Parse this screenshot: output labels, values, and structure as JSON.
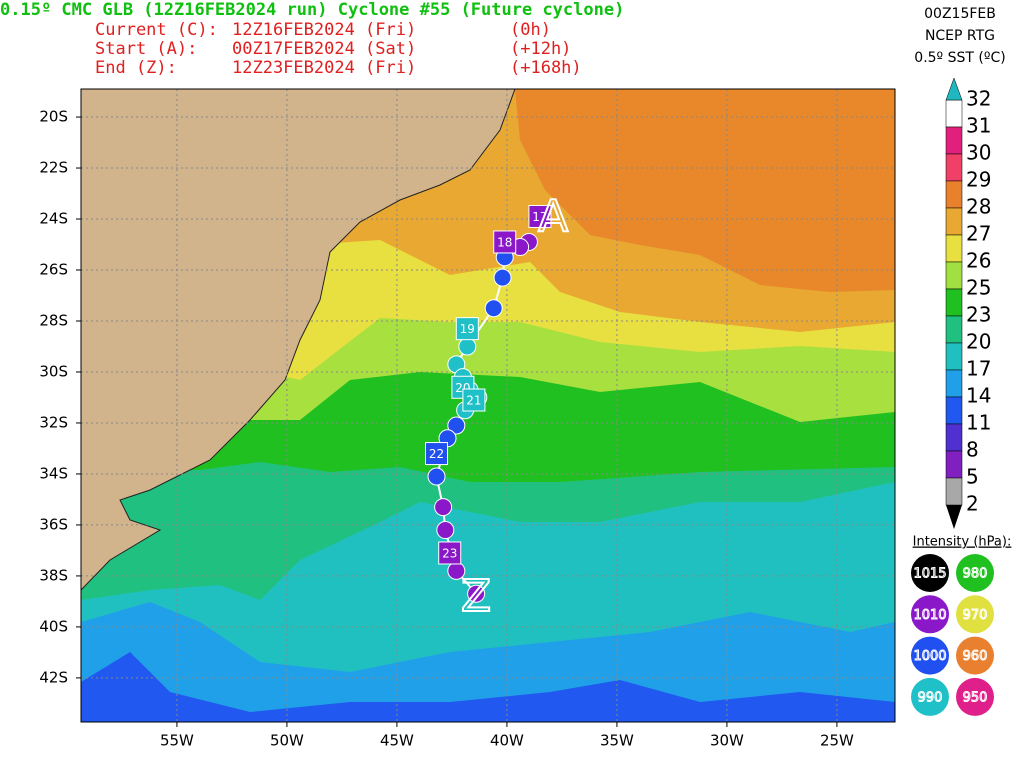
{
  "header": {
    "title": "0.15º CMC GLB (12Z16FEB2024 run) Cyclone #55 (Future cyclone)",
    "lines": [
      {
        "label": "Current (C):",
        "date": "12Z16FEB2024 (Fri)",
        "offset": "(0h)"
      },
      {
        "label": "Start (A):",
        "date": "00Z17FEB2024 (Sat)",
        "offset": "(+12h)"
      },
      {
        "label": "End (Z):",
        "date": "12Z23FEB2024 (Fri)",
        "offset": "(+168h)"
      }
    ]
  },
  "sst_info": [
    "00Z15FEB",
    "NCEP RTG",
    "0.5º SST (ºC)"
  ],
  "colorbar": {
    "levels": [
      32,
      31,
      30,
      29,
      28,
      27,
      26,
      25,
      23,
      20,
      17,
      14,
      11,
      8,
      5,
      2
    ],
    "segment_colors": [
      "#ffffff",
      "#e0207a",
      "#f04068",
      "#e8802c",
      "#e8a832",
      "#e8e040",
      "#a0e040",
      "#20c020",
      "#20c080",
      "#20c0c0",
      "#20a0e8",
      "#2058f0",
      "#5030d0",
      "#8020c0",
      "#a8a8a8"
    ],
    "over_color": "#20b8c0",
    "under_color": "#000000"
  },
  "intensity": {
    "title": "Intensity (hPa):",
    "items": [
      {
        "value": 1015,
        "color": "#000000"
      },
      {
        "value": 980,
        "color": "#20c020"
      },
      {
        "value": 1010,
        "color": "#8a18c8"
      },
      {
        "value": 970,
        "color": "#e0e040"
      },
      {
        "value": 1000,
        "color": "#2050f0"
      },
      {
        "value": 960,
        "color": "#e88030"
      },
      {
        "value": 990,
        "color": "#20c0c8"
      },
      {
        "value": 950,
        "color": "#e0208a"
      }
    ]
  },
  "map": {
    "xlim": [
      -59.36,
      -22.36
    ],
    "ylim": [
      -18.9,
      -43.73
    ],
    "xticks": [
      {
        "value": -55,
        "label": "55W"
      },
      {
        "value": -50,
        "label": "50W"
      },
      {
        "value": -45,
        "label": "45W"
      },
      {
        "value": -40,
        "label": "40W"
      },
      {
        "value": -35,
        "label": "35W"
      },
      {
        "value": -30,
        "label": "30W"
      },
      {
        "value": -25,
        "label": "25W"
      }
    ],
    "yticks": [
      {
        "value": -20,
        "label": "20S"
      },
      {
        "value": -22,
        "label": "22S"
      },
      {
        "value": -24,
        "label": "24S"
      },
      {
        "value": -26,
        "label": "26S"
      },
      {
        "value": -28,
        "label": "28S"
      },
      {
        "value": -30,
        "label": "30S"
      },
      {
        "value": -32,
        "label": "32S"
      },
      {
        "value": -34,
        "label": "34S"
      },
      {
        "value": -36,
        "label": "36S"
      },
      {
        "value": -38,
        "label": "38S"
      },
      {
        "value": -40,
        "label": "40S"
      },
      {
        "value": -42,
        "label": "42S"
      }
    ],
    "track": [
      {
        "lon": -39.0,
        "lat": -24.9,
        "pressure": 1010
      },
      {
        "lon": -39.4,
        "lat": -25.1,
        "pressure": 1010
      },
      {
        "lon": -40.1,
        "lat": -25.5,
        "pressure": 1000
      },
      {
        "lon": -40.2,
        "lat": -26.3,
        "pressure": 1000
      },
      {
        "lon": -40.6,
        "lat": -27.5,
        "pressure": 1000
      },
      {
        "lon": -41.8,
        "lat": -29.0,
        "pressure": 990
      },
      {
        "lon": -42.3,
        "lat": -29.7,
        "pressure": 990
      },
      {
        "lon": -42.0,
        "lat": -30.2,
        "pressure": 990
      },
      {
        "lon": -41.7,
        "lat": -30.7,
        "pressure": 990
      },
      {
        "lon": -41.3,
        "lat": -31.0,
        "pressure": 990
      },
      {
        "lon": -41.9,
        "lat": -31.5,
        "pressure": 990
      },
      {
        "lon": -42.3,
        "lat": -32.1,
        "pressure": 1000
      },
      {
        "lon": -42.7,
        "lat": -32.6,
        "pressure": 1000
      },
      {
        "lon": -43.2,
        "lat": -34.1,
        "pressure": 1000
      },
      {
        "lon": -42.9,
        "lat": -35.3,
        "pressure": 1010
      },
      {
        "lon": -42.8,
        "lat": -36.2,
        "pressure": 1010
      },
      {
        "lon": -42.3,
        "lat": -37.8,
        "pressure": 1010
      },
      {
        "lon": -41.4,
        "lat": -38.7,
        "pressure": 1010
      }
    ],
    "day_markers": [
      {
        "label": "17",
        "lon": -38.5,
        "lat": -23.9,
        "pressure": 1010
      },
      {
        "label": "18",
        "lon": -40.1,
        "lat": -24.9,
        "pressure": 1010
      },
      {
        "label": "19",
        "lon": -41.8,
        "lat": -28.3,
        "pressure": 990
      },
      {
        "label": "20",
        "lon": -42.0,
        "lat": -30.6,
        "pressure": 990
      },
      {
        "label": "21",
        "lon": -41.5,
        "lat": -31.1,
        "pressure": 990
      },
      {
        "label": "22",
        "lon": -43.2,
        "lat": -33.2,
        "pressure": 1000
      },
      {
        "label": "23",
        "lon": -42.6,
        "lat": -37.1,
        "pressure": 1010
      }
    ],
    "start_marker": {
      "label": "A",
      "lon": -37.9,
      "lat": -24.0
    },
    "end_marker": {
      "label": "Z",
      "lon": -41.4,
      "lat": -38.9
    }
  }
}
